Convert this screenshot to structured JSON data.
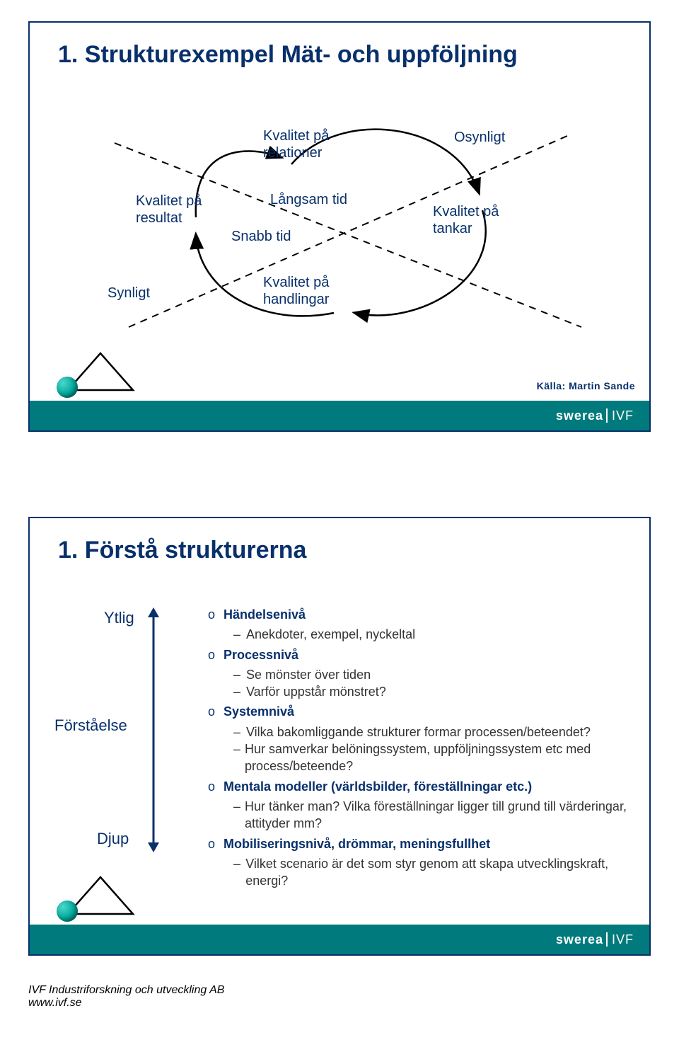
{
  "colors": {
    "primary": "#08306b",
    "accent": "#007a7c",
    "text": "#000000",
    "sphere": "#00a99d"
  },
  "slide1": {
    "title": "1. Strukturexempel Mät- och uppföljning",
    "labels": {
      "relationer": "Kvalitet på\nrelationer",
      "resultat": "Kvalitet på\nresultat",
      "tankar": "Kvalitet på\ntankar",
      "handlingar": "Kvalitet på\nhandlingar",
      "osynligt": "Osynligt",
      "synligt": "Synligt",
      "langsam": "Långsam tid",
      "snabb": "Snabb tid"
    },
    "source": "Källa: Martin Sande"
  },
  "slide2": {
    "title": "1. Förstå strukturerna",
    "axis": {
      "top": "Ytlig",
      "mid": "Förståelse",
      "bottom": "Djup"
    },
    "levels": [
      {
        "head": "Händelsenivå",
        "subs": [
          "Anekdoter, exempel, nyckeltal"
        ]
      },
      {
        "head": "Processnivå",
        "subs": [
          "Se mönster över tiden",
          "Varför uppstår mönstret?"
        ]
      },
      {
        "head": "Systemnivå",
        "subs": [
          "Vilka bakomliggande strukturer formar processen/beteendet?",
          "Hur samverkar belöningssystem, uppföljningssystem etc med process/beteende?"
        ]
      },
      {
        "head": "Mentala modeller (världsbilder, föreställningar etc.)",
        "subs": [
          "Hur tänker man? Vilka föreställningar ligger till grund till värderingar, attityder mm?"
        ]
      },
      {
        "head": "Mobiliseringsnivå, drömmar, meningsfullhet",
        "subs": [
          "Vilket scenario är det som styr genom att skapa utvecklingskraft, energi?"
        ]
      }
    ]
  },
  "logo": {
    "part1": "swerea",
    "part2": "IVF"
  },
  "footnote": {
    "line1": "IVF Industriforskning och utveckling AB",
    "line2": "www.ivf.se"
  }
}
